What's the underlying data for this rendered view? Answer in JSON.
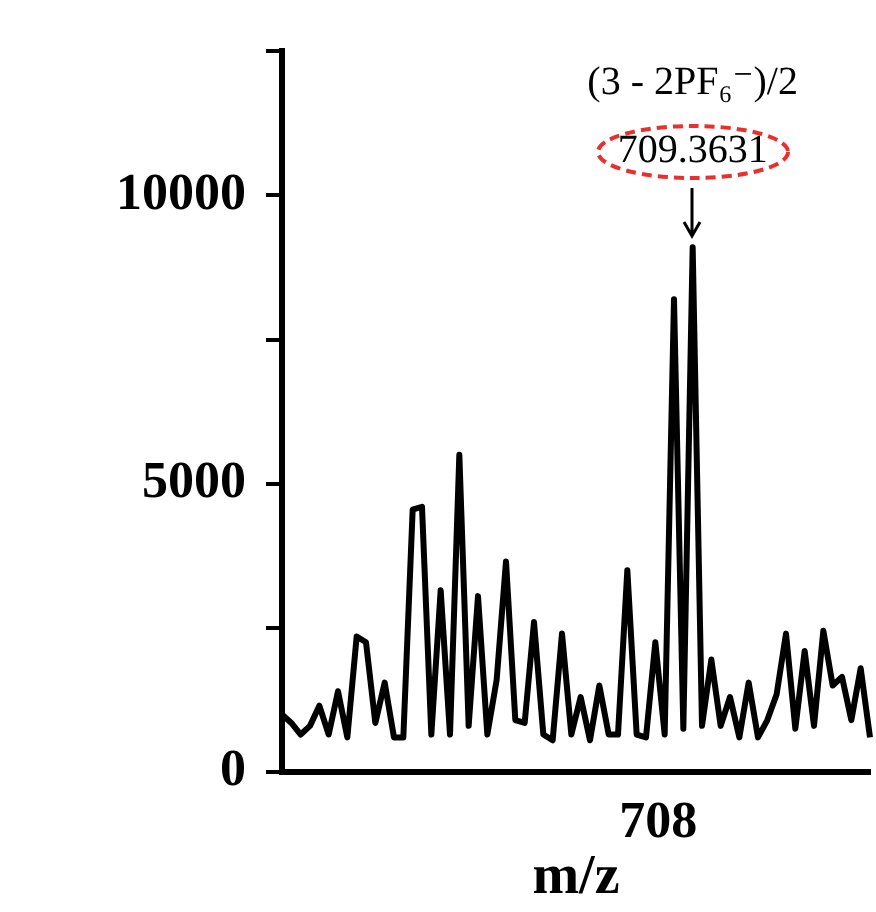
{
  "chart_data": {
    "type": "line",
    "xlabel": "m/z",
    "categories": [
      null,
      null,
      null,
      null,
      null,
      null,
      null,
      null,
      null,
      null,
      null,
      null,
      null,
      null,
      null,
      null,
      null,
      null,
      null,
      null,
      null,
      null,
      null,
      null,
      null,
      null,
      null,
      null,
      null,
      null,
      null,
      null,
      null,
      null,
      null,
      null,
      null,
      null,
      null,
      null,
      null,
      null,
      null,
      null,
      null,
      null,
      null,
      null,
      null,
      null,
      null,
      null,
      null,
      null,
      null,
      null,
      null,
      null,
      null,
      null,
      null,
      null,
      null,
      null
    ],
    "series": [
      {
        "color": "#000000",
        "values": [
          1000,
          850,
          650,
          800,
          1150,
          650,
          1400,
          600,
          2350,
          2250,
          850,
          1550,
          600,
          600,
          4550,
          4600,
          650,
          3150,
          650,
          5500,
          800,
          3050,
          650,
          1600,
          3650,
          900,
          850,
          2600,
          650,
          550,
          2400,
          650,
          1300,
          550,
          1500,
          650,
          650,
          3500,
          650,
          600,
          2250,
          650,
          8200,
          750,
          9100,
          800,
          1950,
          800,
          1300,
          600,
          1550,
          600,
          900,
          1350,
          2400,
          750,
          2100,
          800,
          2450,
          1500,
          1650,
          900,
          1800,
          600
        ]
      }
    ],
    "ylim": [
      0,
      12500
    ],
    "yticks": [
      0,
      {
        "value": 2500,
        "label": null
      },
      5000,
      {
        "value": 7500,
        "label": null
      },
      10000,
      {
        "value": 12500,
        "label": null
      }
    ],
    "grid": false,
    "legend": false,
    "annotations": [
      "708",
      "(3 - 2PF₆⁻)/2",
      {
        "text": "709.3631",
        "y": 9100
      }
    ]
  }
}
